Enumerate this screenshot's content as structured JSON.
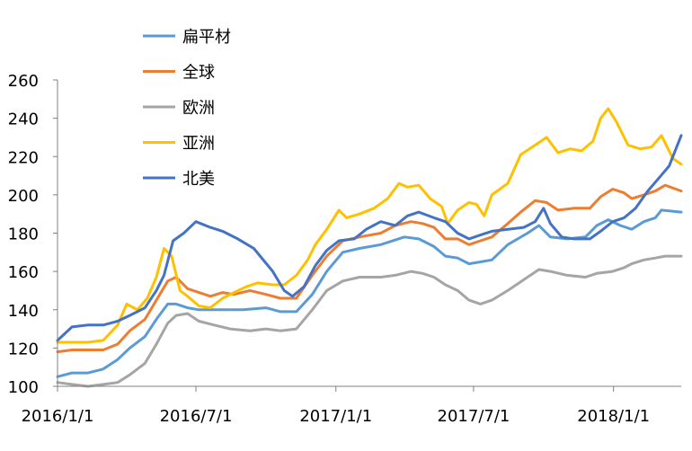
{
  "chart_data": {
    "type": "line",
    "title": "",
    "xlabel": "",
    "ylabel": "",
    "ylim": [
      100,
      260
    ],
    "yticks": [
      100,
      120,
      140,
      160,
      180,
      200,
      220,
      240,
      260
    ],
    "xlim": [
      "2016-01-01",
      "2018-03-31"
    ],
    "xticks": [
      "2016/1/1",
      "2016/7/1",
      "2017/1/1",
      "2017/7/1",
      "2018/1/1"
    ],
    "grid": false,
    "legend_position": "top-left",
    "series": [
      {
        "name": "扁平材",
        "color": "#5B9BD5",
        "points": [
          [
            "2016-01-01",
            105
          ],
          [
            "2016-01-20",
            107
          ],
          [
            "2016-02-10",
            107
          ],
          [
            "2016-03-01",
            109
          ],
          [
            "2016-03-20",
            114
          ],
          [
            "2016-04-05",
            120
          ],
          [
            "2016-04-25",
            126
          ],
          [
            "2016-05-10",
            135
          ],
          [
            "2016-05-25",
            143
          ],
          [
            "2016-06-05",
            143
          ],
          [
            "2016-06-20",
            141
          ],
          [
            "2016-07-05",
            140
          ],
          [
            "2016-08-01",
            140
          ],
          [
            "2016-09-01",
            140
          ],
          [
            "2016-10-01",
            141
          ],
          [
            "2016-10-20",
            139
          ],
          [
            "2016-11-10",
            139
          ],
          [
            "2016-12-01",
            148
          ],
          [
            "2016-12-20",
            160
          ],
          [
            "2017-01-10",
            170
          ],
          [
            "2017-02-01",
            172
          ],
          [
            "2017-03-01",
            174
          ],
          [
            "2017-04-01",
            178
          ],
          [
            "2017-04-20",
            177
          ],
          [
            "2017-05-10",
            173
          ],
          [
            "2017-05-25",
            168
          ],
          [
            "2017-06-10",
            167
          ],
          [
            "2017-06-25",
            164
          ],
          [
            "2017-07-10",
            165
          ],
          [
            "2017-07-25",
            166
          ],
          [
            "2017-08-15",
            174
          ],
          [
            "2017-09-10",
            180
          ],
          [
            "2017-09-25",
            184
          ],
          [
            "2017-10-10",
            178
          ],
          [
            "2017-11-01",
            177
          ],
          [
            "2017-11-25",
            178
          ],
          [
            "2017-12-10",
            184
          ],
          [
            "2017-12-25",
            187
          ],
          [
            "2018-01-10",
            184
          ],
          [
            "2018-01-25",
            182
          ],
          [
            "2018-02-10",
            186
          ],
          [
            "2018-02-25",
            188
          ],
          [
            "2018-03-05",
            192
          ],
          [
            "2018-03-31",
            191
          ]
        ]
      },
      {
        "name": "全球",
        "color": "#ED7D31",
        "points": [
          [
            "2016-01-01",
            118
          ],
          [
            "2016-01-20",
            119
          ],
          [
            "2016-02-10",
            119
          ],
          [
            "2016-03-01",
            119
          ],
          [
            "2016-03-20",
            122
          ],
          [
            "2016-04-05",
            129
          ],
          [
            "2016-04-25",
            135
          ],
          [
            "2016-05-10",
            145
          ],
          [
            "2016-05-25",
            155
          ],
          [
            "2016-06-05",
            157
          ],
          [
            "2016-06-20",
            151
          ],
          [
            "2016-07-05",
            149
          ],
          [
            "2016-07-20",
            147
          ],
          [
            "2016-08-05",
            149
          ],
          [
            "2016-08-20",
            148
          ],
          [
            "2016-09-10",
            150
          ],
          [
            "2016-10-01",
            148
          ],
          [
            "2016-10-20",
            146
          ],
          [
            "2016-11-10",
            146
          ],
          [
            "2016-12-01",
            158
          ],
          [
            "2016-12-20",
            168
          ],
          [
            "2017-01-10",
            176
          ],
          [
            "2017-02-01",
            178
          ],
          [
            "2017-03-01",
            180
          ],
          [
            "2017-03-20",
            184
          ],
          [
            "2017-04-10",
            186
          ],
          [
            "2017-04-25",
            185
          ],
          [
            "2017-05-10",
            183
          ],
          [
            "2017-05-25",
            177
          ],
          [
            "2017-06-10",
            177
          ],
          [
            "2017-06-25",
            174
          ],
          [
            "2017-07-10",
            176
          ],
          [
            "2017-07-25",
            178
          ],
          [
            "2017-08-15",
            185
          ],
          [
            "2017-09-01",
            191
          ],
          [
            "2017-09-20",
            197
          ],
          [
            "2017-10-05",
            196
          ],
          [
            "2017-10-20",
            192
          ],
          [
            "2017-11-10",
            193
          ],
          [
            "2017-12-01",
            193
          ],
          [
            "2017-12-15",
            199
          ],
          [
            "2017-12-31",
            203
          ],
          [
            "2018-01-15",
            201
          ],
          [
            "2018-01-25",
            198
          ],
          [
            "2018-02-10",
            200
          ],
          [
            "2018-02-25",
            202
          ],
          [
            "2018-03-10",
            205
          ],
          [
            "2018-03-31",
            202
          ]
        ]
      },
      {
        "name": "欧洲",
        "color": "#A5A5A5",
        "points": [
          [
            "2016-01-01",
            102
          ],
          [
            "2016-01-20",
            101
          ],
          [
            "2016-02-10",
            100
          ],
          [
            "2016-03-01",
            101
          ],
          [
            "2016-03-20",
            102
          ],
          [
            "2016-04-05",
            106
          ],
          [
            "2016-04-25",
            112
          ],
          [
            "2016-05-10",
            122
          ],
          [
            "2016-05-25",
            133
          ],
          [
            "2016-06-05",
            137
          ],
          [
            "2016-06-20",
            138
          ],
          [
            "2016-07-05",
            134
          ],
          [
            "2016-07-25",
            132
          ],
          [
            "2016-08-15",
            130
          ],
          [
            "2016-09-10",
            129
          ],
          [
            "2016-10-01",
            130
          ],
          [
            "2016-10-20",
            129
          ],
          [
            "2016-11-10",
            130
          ],
          [
            "2016-12-01",
            140
          ],
          [
            "2016-12-20",
            150
          ],
          [
            "2017-01-10",
            155
          ],
          [
            "2017-02-01",
            157
          ],
          [
            "2017-03-01",
            157
          ],
          [
            "2017-03-20",
            158
          ],
          [
            "2017-04-10",
            160
          ],
          [
            "2017-04-25",
            159
          ],
          [
            "2017-05-10",
            157
          ],
          [
            "2017-05-25",
            153
          ],
          [
            "2017-06-10",
            150
          ],
          [
            "2017-06-25",
            145
          ],
          [
            "2017-07-10",
            143
          ],
          [
            "2017-07-25",
            145
          ],
          [
            "2017-08-15",
            150
          ],
          [
            "2017-09-10",
            157
          ],
          [
            "2017-09-25",
            161
          ],
          [
            "2017-10-10",
            160
          ],
          [
            "2017-11-01",
            158
          ],
          [
            "2017-11-25",
            157
          ],
          [
            "2017-12-10",
            159
          ],
          [
            "2017-12-31",
            160
          ],
          [
            "2018-01-15",
            162
          ],
          [
            "2018-01-25",
            164
          ],
          [
            "2018-02-10",
            166
          ],
          [
            "2018-02-25",
            167
          ],
          [
            "2018-03-10",
            168
          ],
          [
            "2018-03-31",
            168
          ]
        ]
      },
      {
        "name": "亚洲",
        "color": "#FFC000",
        "points": [
          [
            "2016-01-01",
            123
          ],
          [
            "2016-01-20",
            123
          ],
          [
            "2016-02-10",
            123
          ],
          [
            "2016-03-01",
            124
          ],
          [
            "2016-03-20",
            132
          ],
          [
            "2016-04-01",
            143
          ],
          [
            "2016-04-15",
            140
          ],
          [
            "2016-04-28",
            146
          ],
          [
            "2016-05-10",
            157
          ],
          [
            "2016-05-20",
            172
          ],
          [
            "2016-05-30",
            168
          ],
          [
            "2016-06-10",
            150
          ],
          [
            "2016-06-20",
            147
          ],
          [
            "2016-07-05",
            142
          ],
          [
            "2016-07-20",
            141
          ],
          [
            "2016-08-05",
            146
          ],
          [
            "2016-08-20",
            149
          ],
          [
            "2016-09-05",
            152
          ],
          [
            "2016-09-20",
            154
          ],
          [
            "2016-10-10",
            153
          ],
          [
            "2016-10-25",
            153
          ],
          [
            "2016-11-10",
            158
          ],
          [
            "2016-11-25",
            166
          ],
          [
            "2016-12-05",
            174
          ],
          [
            "2016-12-20",
            182
          ],
          [
            "2017-01-05",
            192
          ],
          [
            "2017-01-15",
            188
          ],
          [
            "2017-02-01",
            190
          ],
          [
            "2017-02-20",
            193
          ],
          [
            "2017-03-10",
            198
          ],
          [
            "2017-03-25",
            206
          ],
          [
            "2017-04-05",
            204
          ],
          [
            "2017-04-20",
            205
          ],
          [
            "2017-05-05",
            198
          ],
          [
            "2017-05-20",
            194
          ],
          [
            "2017-05-28",
            185
          ],
          [
            "2017-06-10",
            192
          ],
          [
            "2017-06-25",
            196
          ],
          [
            "2017-07-05",
            195
          ],
          [
            "2017-07-15",
            189
          ],
          [
            "2017-07-25",
            200
          ],
          [
            "2017-08-15",
            206
          ],
          [
            "2017-09-01",
            221
          ],
          [
            "2017-09-20",
            226
          ],
          [
            "2017-10-05",
            230
          ],
          [
            "2017-10-20",
            222
          ],
          [
            "2017-11-05",
            224
          ],
          [
            "2017-11-20",
            223
          ],
          [
            "2017-12-05",
            228
          ],
          [
            "2017-12-15",
            240
          ],
          [
            "2017-12-25",
            245
          ],
          [
            "2018-01-05",
            238
          ],
          [
            "2018-01-20",
            226
          ],
          [
            "2018-02-05",
            224
          ],
          [
            "2018-02-20",
            225
          ],
          [
            "2018-03-05",
            231
          ],
          [
            "2018-03-20",
            219
          ],
          [
            "2018-03-31",
            216
          ]
        ]
      },
      {
        "name": "北美",
        "color": "#4472C4",
        "points": [
          [
            "2016-01-01",
            124
          ],
          [
            "2016-01-20",
            131
          ],
          [
            "2016-02-10",
            132
          ],
          [
            "2016-03-01",
            132
          ],
          [
            "2016-03-20",
            134
          ],
          [
            "2016-04-05",
            137
          ],
          [
            "2016-04-25",
            141
          ],
          [
            "2016-05-10",
            150
          ],
          [
            "2016-05-20",
            158
          ],
          [
            "2016-06-01",
            176
          ],
          [
            "2016-06-15",
            180
          ],
          [
            "2016-07-01",
            186
          ],
          [
            "2016-07-20",
            183
          ],
          [
            "2016-08-05",
            181
          ],
          [
            "2016-08-25",
            177
          ],
          [
            "2016-09-15",
            172
          ],
          [
            "2016-10-10",
            160
          ],
          [
            "2016-10-25",
            150
          ],
          [
            "2016-11-05",
            147
          ],
          [
            "2016-11-20",
            152
          ],
          [
            "2016-12-05",
            163
          ],
          [
            "2016-12-20",
            171
          ],
          [
            "2017-01-05",
            176
          ],
          [
            "2017-01-25",
            177
          ],
          [
            "2017-02-10",
            182
          ],
          [
            "2017-03-01",
            186
          ],
          [
            "2017-03-20",
            184
          ],
          [
            "2017-04-05",
            189
          ],
          [
            "2017-04-20",
            191
          ],
          [
            "2017-05-10",
            188
          ],
          [
            "2017-05-25",
            186
          ],
          [
            "2017-06-10",
            180
          ],
          [
            "2017-06-25",
            177
          ],
          [
            "2017-07-10",
            179
          ],
          [
            "2017-07-25",
            181
          ],
          [
            "2017-08-15",
            182
          ],
          [
            "2017-09-05",
            183
          ],
          [
            "2017-09-20",
            186
          ],
          [
            "2017-10-01",
            193
          ],
          [
            "2017-10-10",
            185
          ],
          [
            "2017-10-25",
            178
          ],
          [
            "2017-11-10",
            177
          ],
          [
            "2017-12-01",
            177
          ],
          [
            "2017-12-15",
            181
          ],
          [
            "2017-12-31",
            186
          ],
          [
            "2018-01-15",
            188
          ],
          [
            "2018-01-30",
            193
          ],
          [
            "2018-02-15",
            202
          ],
          [
            "2018-02-28",
            208
          ],
          [
            "2018-03-15",
            215
          ],
          [
            "2018-03-31",
            231
          ]
        ]
      }
    ]
  }
}
